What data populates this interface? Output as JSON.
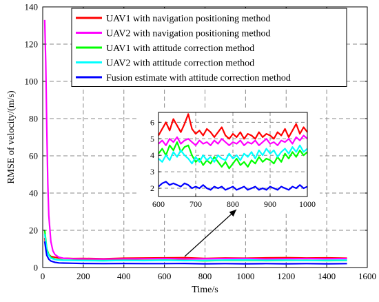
{
  "chart_data": {
    "type": "line",
    "title": "",
    "xlabel": "Time/s",
    "ylabel": "RMSE of velocity/(m/s)",
    "xlim": [
      0,
      1600
    ],
    "ylim": [
      0,
      140
    ],
    "xticks": [
      0,
      200,
      400,
      600,
      800,
      1000,
      1200,
      1400,
      1600
    ],
    "yticks": [
      0,
      20,
      40,
      60,
      80,
      100,
      120,
      140
    ],
    "grid": true,
    "grid_style": "dashed",
    "legend_placement": "top-right",
    "series": [
      {
        "name": "UAV1 with navigation positioning method",
        "color": "#ff0000",
        "x": [
          10,
          15,
          20,
          30,
          40,
          60,
          80,
          100,
          150,
          200,
          300,
          400,
          500,
          600,
          700,
          800,
          900,
          1000,
          1100,
          1200,
          1300,
          1400,
          1500
        ],
        "y": [
          16,
          12,
          9,
          7,
          6,
          5.5,
          5.2,
          5,
          4.8,
          4.9,
          4.7,
          5,
          5.1,
          5.2,
          5.3,
          4.9,
          5.1,
          5,
          5.2,
          5.3,
          5.1,
          5.2,
          5
        ]
      },
      {
        "name": "UAV2 with navigation positioning method",
        "color": "#ff00ff",
        "x": [
          10,
          15,
          20,
          25,
          30,
          40,
          50,
          60,
          80,
          100,
          150,
          200,
          300,
          400,
          500,
          600,
          700,
          800,
          900,
          1000,
          1100,
          1200,
          1300,
          1400,
          1500
        ],
        "y": [
          133,
          110,
          75,
          45,
          28,
          14,
          9,
          7,
          5.5,
          5,
          4.7,
          4.6,
          4.5,
          4.6,
          4.7,
          4.8,
          4.6,
          4.7,
          4.8,
          4.8,
          4.6,
          4.7,
          4.8,
          4.7,
          4.8
        ]
      },
      {
        "name": "UAV1 with attitude correction method",
        "color": "#00ff00",
        "x": [
          10,
          15,
          20,
          30,
          40,
          60,
          80,
          100,
          150,
          200,
          300,
          400,
          500,
          600,
          700,
          800,
          900,
          1000,
          1100,
          1200,
          1300,
          1400,
          1500
        ],
        "y": [
          20,
          15,
          10,
          7,
          5.5,
          4.5,
          4.2,
          4,
          3.9,
          3.8,
          3.7,
          3.9,
          3.8,
          4,
          3.8,
          3.6,
          3.9,
          3.8,
          3.7,
          3.8,
          3.9,
          3.7,
          3.8
        ]
      },
      {
        "name": "UAV2 with attitude correction method",
        "color": "#00ffff",
        "x": [
          10,
          15,
          20,
          30,
          40,
          60,
          80,
          100,
          150,
          200,
          300,
          400,
          500,
          600,
          700,
          800,
          900,
          1000,
          1100,
          1200,
          1300,
          1400,
          1500
        ],
        "y": [
          18,
          14,
          9,
          6.5,
          5,
          4.3,
          4,
          3.9,
          3.8,
          3.7,
          3.6,
          3.8,
          3.7,
          3.9,
          3.7,
          3.8,
          4,
          4.1,
          3.9,
          4,
          3.8,
          3.9,
          4
        ]
      },
      {
        "name": "Fusion estimate with attitude correction method",
        "color": "#0000ff",
        "x": [
          10,
          15,
          20,
          30,
          40,
          60,
          80,
          100,
          150,
          200,
          300,
          400,
          500,
          600,
          700,
          800,
          900,
          1000,
          1100,
          1200,
          1300,
          1400,
          1500
        ],
        "y": [
          14,
          10,
          6.5,
          4.5,
          3.5,
          2.8,
          2.5,
          2.4,
          2.3,
          2.2,
          2.1,
          2.2,
          2.1,
          2.1,
          2.2,
          2,
          2.1,
          2,
          2.1,
          2,
          2.1,
          2,
          2.1
        ]
      }
    ],
    "inset": {
      "xlim": [
        600,
        1000
      ],
      "ylim": [
        1.5,
        6.6
      ],
      "xticks": [
        600,
        700,
        800,
        900,
        1000
      ],
      "yticks": [
        2,
        3,
        4,
        5,
        6
      ],
      "grid": true,
      "series": [
        {
          "name": "UAV1 with navigation positioning method",
          "color": "#ff0000",
          "x": [
            600,
            610,
            620,
            630,
            640,
            650,
            660,
            670,
            680,
            690,
            700,
            710,
            720,
            730,
            740,
            750,
            760,
            770,
            780,
            790,
            800,
            810,
            820,
            830,
            840,
            850,
            860,
            870,
            880,
            890,
            900,
            910,
            920,
            930,
            940,
            950,
            960,
            970,
            980,
            990,
            1000
          ],
          "y": [
            5.2,
            5.6,
            6.0,
            5.5,
            6.2,
            5.8,
            5.4,
            5.9,
            6.5,
            5.6,
            5.3,
            5.5,
            5.2,
            5.6,
            5.4,
            5.1,
            5.4,
            5.7,
            5.2,
            5.0,
            5.3,
            5.1,
            5.4,
            5.0,
            5.3,
            5.2,
            5.0,
            5.4,
            5.1,
            5.3,
            5.2,
            5.0,
            5.4,
            5.2,
            5.6,
            5.1,
            5.5,
            5.9,
            5.3,
            5.7,
            5.4
          ]
        },
        {
          "name": "UAV2 with navigation positioning method",
          "color": "#ff00ff",
          "x": [
            600,
            610,
            620,
            630,
            640,
            650,
            660,
            670,
            680,
            690,
            700,
            710,
            720,
            730,
            740,
            750,
            760,
            770,
            780,
            790,
            800,
            810,
            820,
            830,
            840,
            850,
            860,
            870,
            880,
            890,
            900,
            910,
            920,
            930,
            940,
            950,
            960,
            970,
            980,
            990,
            1000
          ],
          "y": [
            4.7,
            4.9,
            4.6,
            5.0,
            4.8,
            5.1,
            4.7,
            4.9,
            5.0,
            4.8,
            4.6,
            4.9,
            4.7,
            4.8,
            4.6,
            4.9,
            4.7,
            5.0,
            4.8,
            4.6,
            4.8,
            4.7,
            4.9,
            4.6,
            4.8,
            4.7,
            4.9,
            4.6,
            4.8,
            5.0,
            4.7,
            4.8,
            4.6,
            4.9,
            4.8,
            5.0,
            4.7,
            5.1,
            4.9,
            5.2,
            5.0
          ]
        },
        {
          "name": "UAV1 with attitude correction method",
          "color": "#00ff00",
          "x": [
            600,
            610,
            620,
            630,
            640,
            650,
            660,
            670,
            680,
            690,
            700,
            710,
            720,
            730,
            740,
            750,
            760,
            770,
            780,
            790,
            800,
            810,
            820,
            830,
            840,
            850,
            860,
            870,
            880,
            890,
            900,
            910,
            920,
            930,
            940,
            950,
            960,
            970,
            980,
            990,
            1000
          ],
          "y": [
            4.1,
            4.4,
            4.0,
            4.6,
            4.3,
            4.8,
            4.2,
            4.5,
            4.6,
            4.0,
            3.6,
            3.8,
            3.4,
            3.7,
            3.5,
            3.9,
            3.6,
            3.3,
            3.6,
            3.2,
            3.5,
            3.8,
            3.4,
            3.6,
            3.3,
            3.7,
            3.5,
            3.9,
            3.6,
            3.8,
            3.7,
            3.5,
            3.9,
            3.6,
            4.1,
            3.8,
            4.2,
            3.9,
            4.3,
            4.0,
            4.2
          ]
        },
        {
          "name": "UAV2 with attitude correction method",
          "color": "#00ffff",
          "x": [
            600,
            610,
            620,
            630,
            640,
            650,
            660,
            670,
            680,
            690,
            700,
            710,
            720,
            730,
            740,
            750,
            760,
            770,
            780,
            790,
            800,
            810,
            820,
            830,
            840,
            850,
            860,
            870,
            880,
            890,
            900,
            910,
            920,
            930,
            940,
            950,
            960,
            970,
            980,
            990,
            1000
          ],
          "y": [
            3.8,
            3.6,
            4.0,
            3.7,
            4.2,
            3.9,
            4.3,
            4.0,
            3.8,
            3.5,
            3.9,
            3.6,
            4.0,
            3.7,
            3.9,
            3.6,
            4.0,
            3.8,
            3.7,
            4.1,
            3.8,
            4.0,
            3.7,
            4.1,
            3.9,
            4.2,
            3.8,
            4.3,
            4.0,
            4.4,
            4.1,
            4.3,
            3.9,
            4.2,
            4.4,
            4.1,
            4.5,
            4.2,
            4.6,
            4.2,
            4.4
          ]
        },
        {
          "name": "Fusion estimate with attitude correction method",
          "color": "#0000ff",
          "x": [
            600,
            610,
            620,
            630,
            640,
            650,
            660,
            670,
            680,
            690,
            700,
            710,
            720,
            730,
            740,
            750,
            760,
            770,
            780,
            790,
            800,
            810,
            820,
            830,
            840,
            850,
            860,
            870,
            880,
            890,
            900,
            910,
            920,
            930,
            940,
            950,
            960,
            970,
            980,
            990,
            1000
          ],
          "y": [
            2.1,
            2.3,
            2.4,
            2.2,
            2.3,
            2.2,
            2.1,
            2.3,
            2.2,
            2.0,
            2.1,
            2.0,
            2.2,
            2.0,
            1.9,
            2.1,
            2.0,
            2.1,
            1.9,
            2.0,
            2.1,
            1.9,
            2.0,
            2.1,
            1.9,
            2.0,
            2.1,
            1.9,
            2.0,
            1.9,
            2.1,
            2.0,
            1.9,
            2.1,
            2.0,
            1.9,
            2.1,
            2.0,
            2.2,
            2.0,
            2.1
          ]
        }
      ]
    }
  }
}
